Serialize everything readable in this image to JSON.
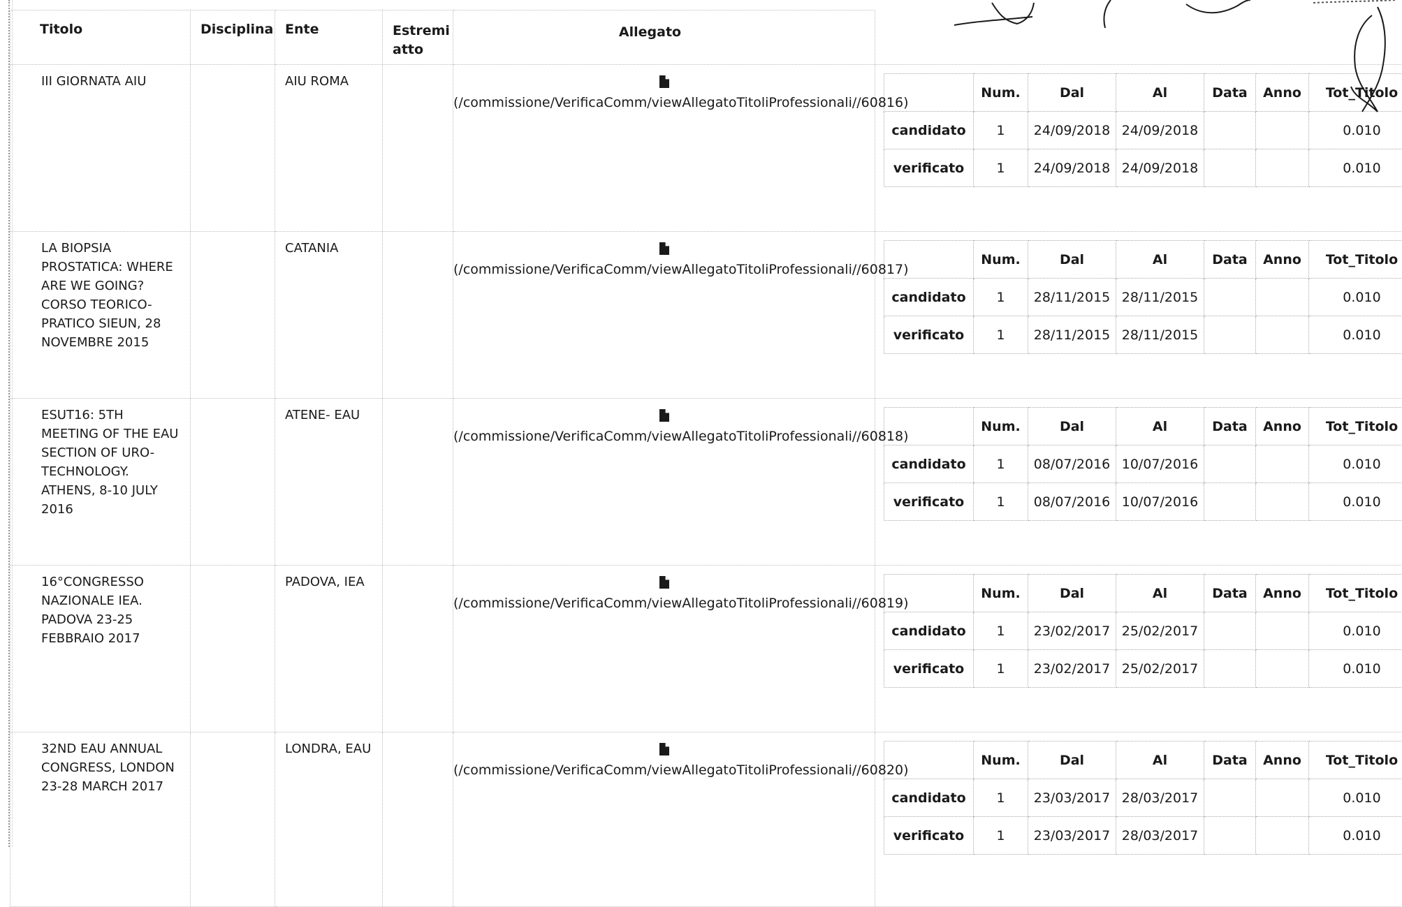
{
  "headers": {
    "titolo": "Titolo",
    "disciplina": "Disciplina",
    "ente": "Ente",
    "estremi": "Estremi atto",
    "allegato": "Allegato"
  },
  "inner_headers": [
    "",
    "Num.",
    "Dal",
    "Al",
    "Data",
    "Anno",
    "Tot_Titolo"
  ],
  "rows": [
    {
      "titolo": "III GIORNATA AIU",
      "disciplina": "",
      "ente": "AIU ROMA",
      "estremi": "",
      "allegato_link": "(/commissione/VerificaComm/viewAllegatoTitoliProfessionali//60816)",
      "candidato": {
        "label": "candidato",
        "num": "1",
        "dal": "24/09/2018",
        "al": "24/09/2018",
        "data": "",
        "anno": "",
        "tot": "0.010"
      },
      "verificato": {
        "label": "verificato",
        "num": "1",
        "dal": "24/09/2018",
        "al": "24/09/2018",
        "data": "",
        "anno": "",
        "tot": "0.010"
      }
    },
    {
      "titolo": "LA BIOPSIA PROSTATICA: WHERE ARE WE GOING? CORSO TEORICO-PRATICO SIEUN, 28 NOVEMBRE 2015",
      "disciplina": "",
      "ente": "CATANIA",
      "estremi": "",
      "allegato_link": "(/commissione/VerificaComm/viewAllegatoTitoliProfessionali//60817)",
      "candidato": {
        "label": "candidato",
        "num": "1",
        "dal": "28/11/2015",
        "al": "28/11/2015",
        "data": "",
        "anno": "",
        "tot": "0.010"
      },
      "verificato": {
        "label": "verificato",
        "num": "1",
        "dal": "28/11/2015",
        "al": "28/11/2015",
        "data": "",
        "anno": "",
        "tot": "0.010"
      }
    },
    {
      "titolo": "ESUT16: 5TH MEETING OF THE EAU SECTION OF URO-TECHNOLOGY. ATHENS, 8-10 JULY 2016",
      "disciplina": "",
      "ente": "ATENE- EAU",
      "estremi": "",
      "allegato_link": "(/commissione/VerificaComm/viewAllegatoTitoliProfessionali//60818)",
      "candidato": {
        "label": "candidato",
        "num": "1",
        "dal": "08/07/2016",
        "al": "10/07/2016",
        "data": "",
        "anno": "",
        "tot": "0.010"
      },
      "verificato": {
        "label": "verificato",
        "num": "1",
        "dal": "08/07/2016",
        "al": "10/07/2016",
        "data": "",
        "anno": "",
        "tot": "0.010"
      }
    },
    {
      "titolo": "16°CONGRESSO NAZIONALE IEA. PADOVA 23-25 FEBBRAIO 2017",
      "disciplina": "",
      "ente": "PADOVA, IEA",
      "estremi": "",
      "allegato_link": "(/commissione/VerificaComm/viewAllegatoTitoliProfessionali//60819)",
      "candidato": {
        "label": "candidato",
        "num": "1",
        "dal": "23/02/2017",
        "al": "25/02/2017",
        "data": "",
        "anno": "",
        "tot": "0.010"
      },
      "verificato": {
        "label": "verificato",
        "num": "1",
        "dal": "23/02/2017",
        "al": "25/02/2017",
        "data": "",
        "anno": "",
        "tot": "0.010"
      }
    },
    {
      "titolo": "32ND EAU ANNUAL CONGRESS, LONDON 23-28 MARCH 2017",
      "disciplina": "",
      "ente": "LONDRA, EAU",
      "estremi": "",
      "allegato_link": "(/commissione/VerificaComm/viewAllegatoTitoliProfessionali//60820)",
      "candidato": {
        "label": "candidato",
        "num": "1",
        "dal": "23/03/2017",
        "al": "28/03/2017",
        "data": "",
        "anno": "",
        "tot": "0.010"
      },
      "verificato": {
        "label": "verificato",
        "num": "1",
        "dal": "23/03/2017",
        "al": "28/03/2017",
        "data": "",
        "anno": "",
        "tot": "0.010"
      }
    }
  ],
  "icons": {
    "attachment": "file-icon"
  }
}
